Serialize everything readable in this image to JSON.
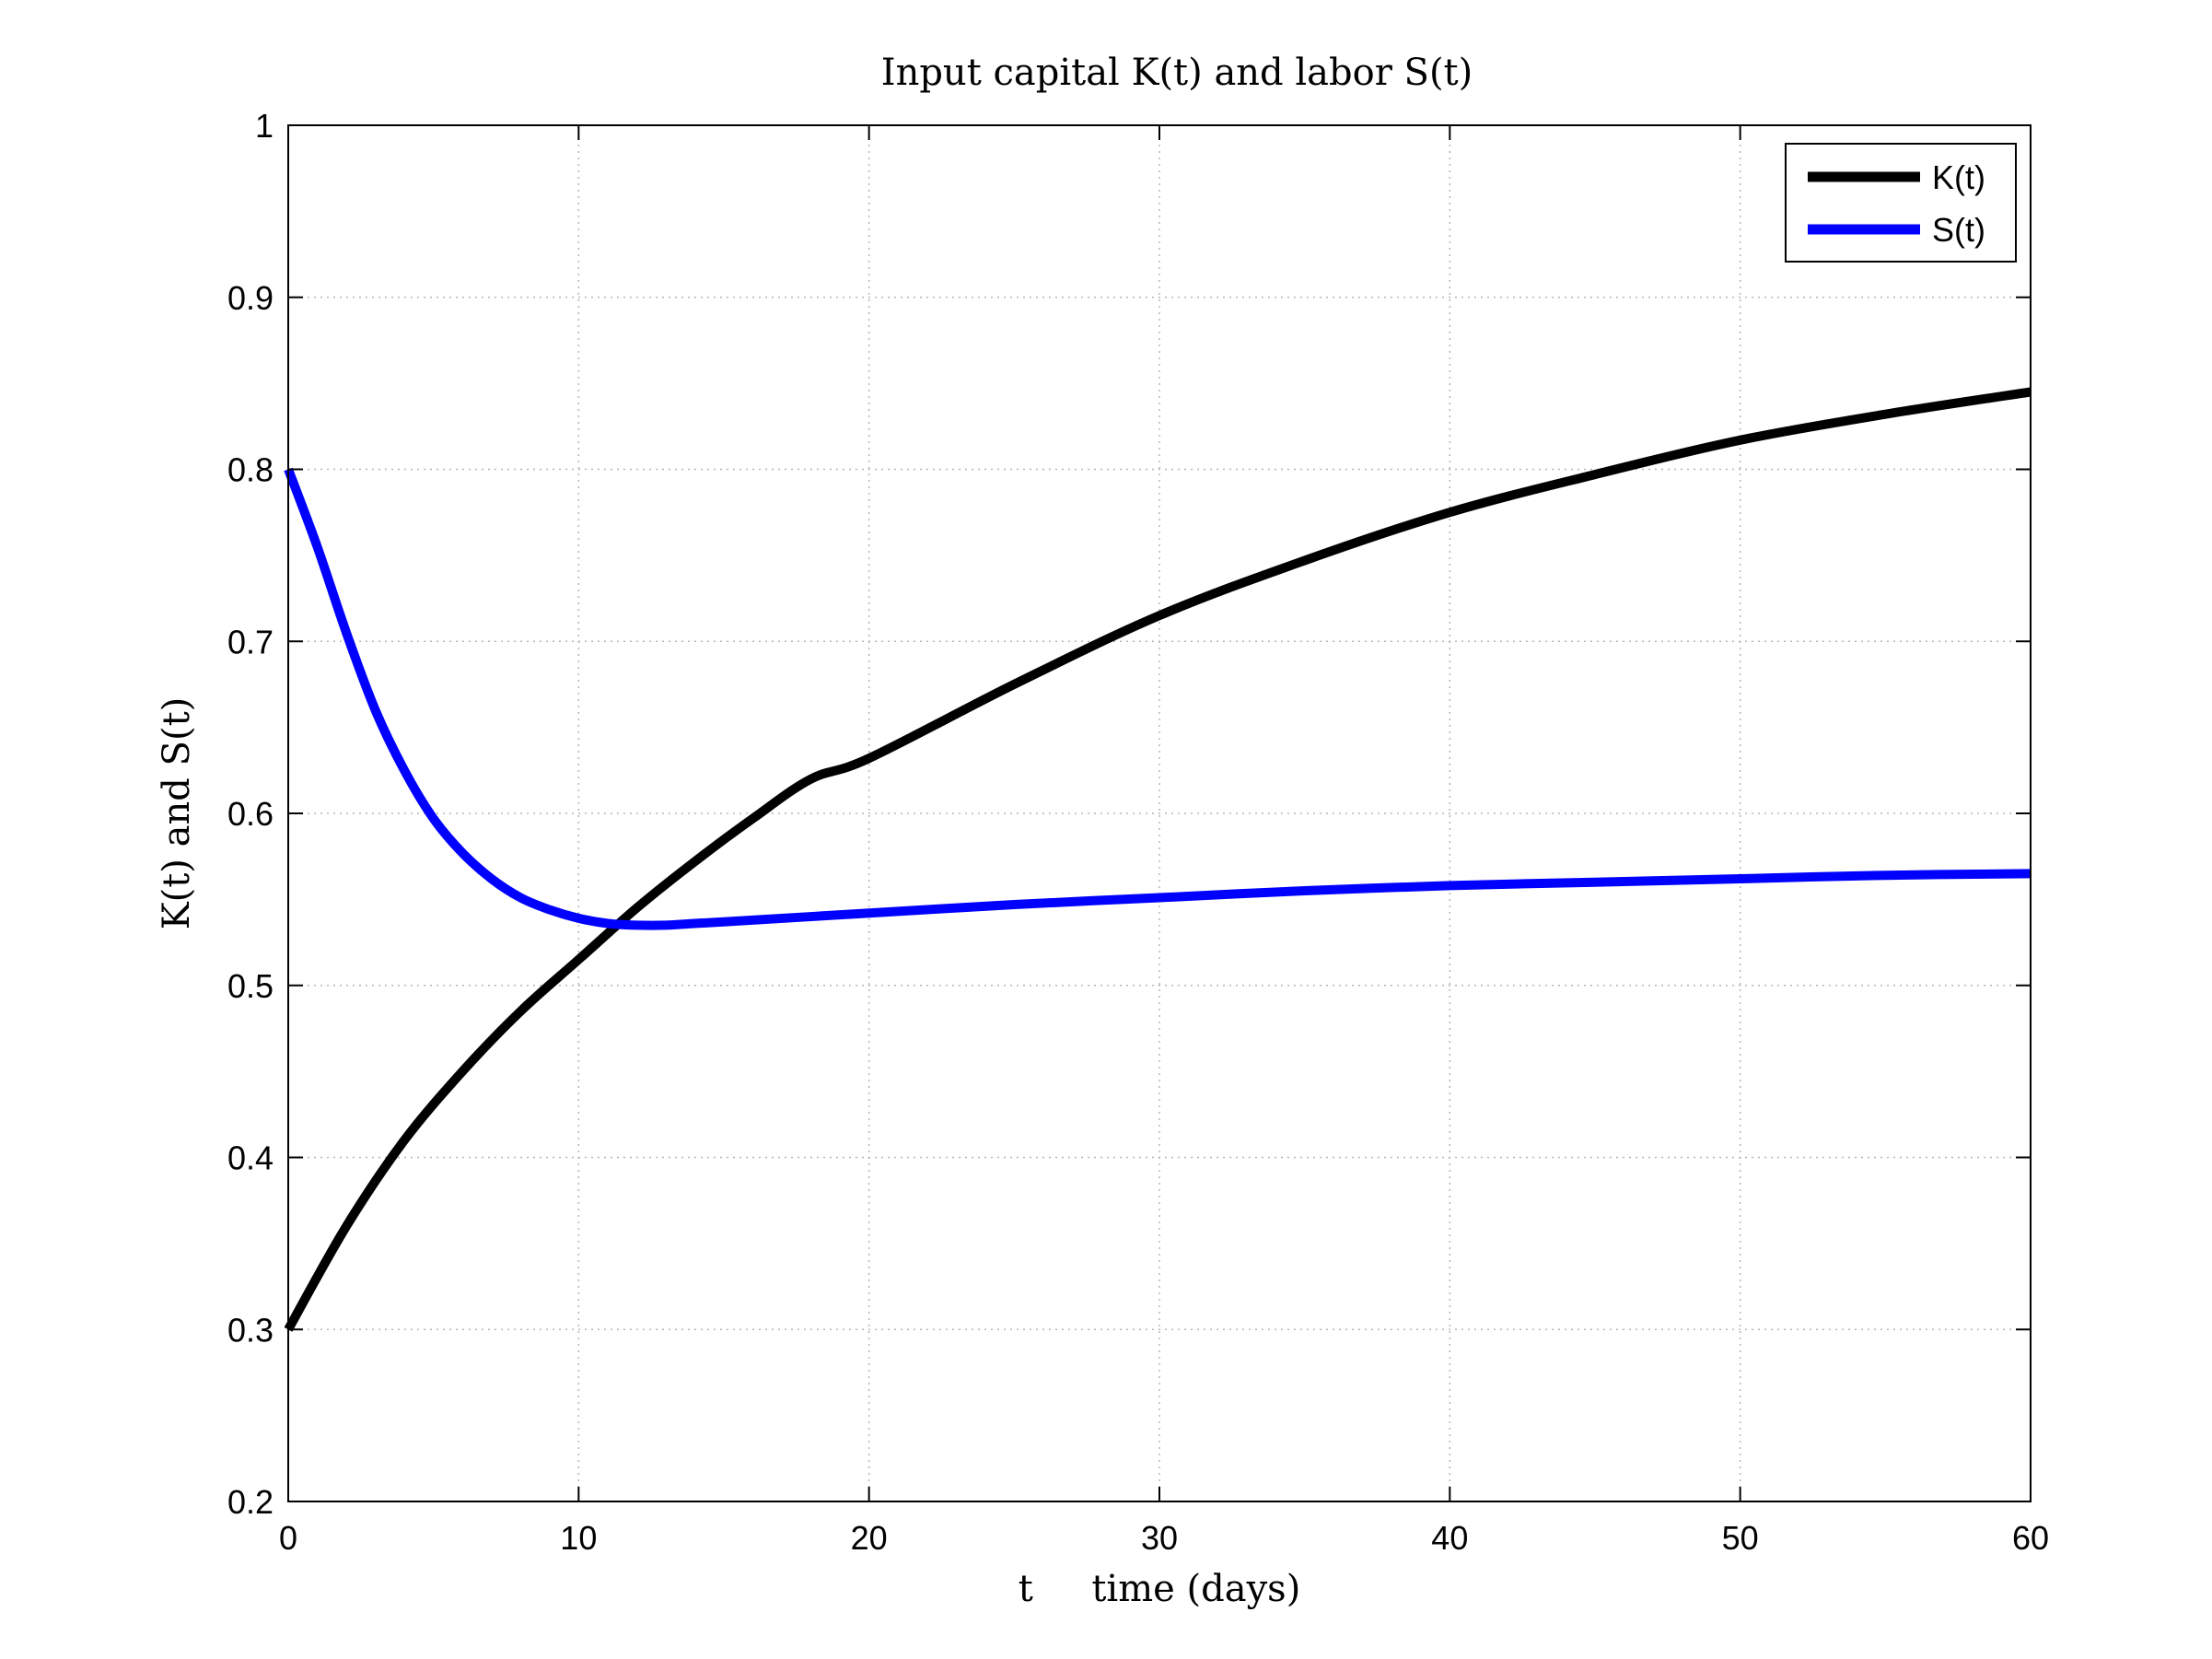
{
  "chart_data": {
    "type": "line",
    "title": "Input capital K(t) and labor S(t)",
    "xlabel": "t     time (days)",
    "ylabel": "K(t) and S(t)",
    "xlim": [
      0,
      60
    ],
    "ylim": [
      0.2,
      1
    ],
    "xticks": [
      0,
      10,
      20,
      30,
      40,
      50,
      60
    ],
    "yticks": [
      0.2,
      0.3,
      0.4,
      0.5,
      0.6,
      0.7,
      0.8,
      0.9,
      1
    ],
    "xtick_labels": [
      "0",
      "10",
      "20",
      "30",
      "40",
      "50",
      "60"
    ],
    "ytick_labels": [
      "0.2",
      "0.3",
      "0.4",
      "0.5",
      "0.6",
      "0.7",
      "0.8",
      "0.9",
      "1"
    ],
    "grid": true,
    "legend_position": "top-right",
    "series": [
      {
        "name": "K(t)",
        "color": "#000000",
        "x": [
          0,
          2,
          4,
          6,
          8,
          10,
          12,
          14,
          16,
          18,
          20,
          25,
          30,
          35,
          40,
          45,
          50,
          55,
          60
        ],
        "y": [
          0.3,
          0.36,
          0.41,
          0.45,
          0.485,
          0.515,
          0.545,
          0.572,
          0.597,
          0.62,
          0.632,
          0.675,
          0.715,
          0.747,
          0.775,
          0.797,
          0.817,
          0.832,
          0.845
        ]
      },
      {
        "name": "S(t)",
        "color": "#0000ff",
        "x": [
          0,
          1,
          2,
          3,
          4,
          5,
          6,
          7,
          8,
          9,
          10,
          11,
          12,
          13,
          14,
          15,
          20,
          25,
          30,
          35,
          40,
          45,
          50,
          55,
          60
        ],
        "y": [
          0.8,
          0.755,
          0.705,
          0.66,
          0.625,
          0.597,
          0.577,
          0.562,
          0.551,
          0.544,
          0.539,
          0.536,
          0.535,
          0.535,
          0.536,
          0.537,
          0.542,
          0.547,
          0.551,
          0.555,
          0.558,
          0.56,
          0.562,
          0.564,
          0.565
        ]
      }
    ]
  }
}
